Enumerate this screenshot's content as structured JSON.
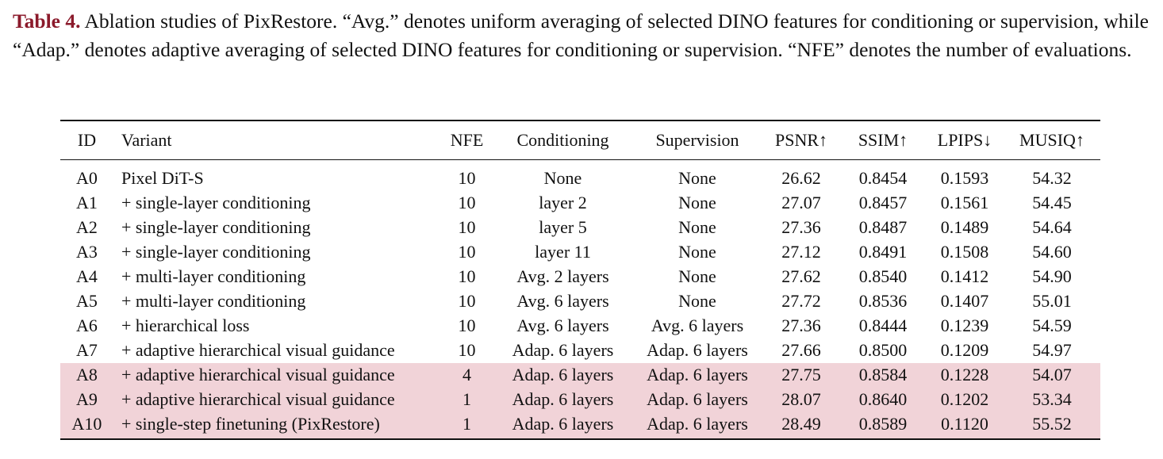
{
  "caption": {
    "label": "Table 4.",
    "text": "Ablation studies of PixRestore. “Avg.” denotes uniform averaging of selected DINO features for conditioning or supervision, while “Adap.” denotes adaptive averaging of selected DINO features for conditioning or supervision. “NFE” denotes the number of evaluations."
  },
  "table": {
    "columns": [
      "ID",
      "Variant",
      "NFE",
      "Conditioning",
      "Supervision",
      "PSNR↑",
      "SSIM↑",
      "LPIPS↓",
      "MUSIQ↑"
    ],
    "highlight_color": "#f1d3d8",
    "rows": [
      [
        "A0",
        "Pixel DiT-S",
        "10",
        "None",
        "None",
        "26.62",
        "0.8454",
        "0.1593",
        "54.32"
      ],
      [
        "A1",
        "+ single-layer conditioning",
        "10",
        "layer 2",
        "None",
        "27.07",
        "0.8457",
        "0.1561",
        "54.45"
      ],
      [
        "A2",
        "+ single-layer conditioning",
        "10",
        "layer 5",
        "None",
        "27.36",
        "0.8487",
        "0.1489",
        "54.64"
      ],
      [
        "A3",
        "+ single-layer conditioning",
        "10",
        "layer 11",
        "None",
        "27.12",
        "0.8491",
        "0.1508",
        "54.60"
      ],
      [
        "A4",
        "+ multi-layer conditioning",
        "10",
        "Avg. 2 layers",
        "None",
        "27.62",
        "0.8540",
        "0.1412",
        "54.90"
      ],
      [
        "A5",
        "+ multi-layer conditioning",
        "10",
        "Avg. 6 layers",
        "None",
        "27.72",
        "0.8536",
        "0.1407",
        "55.01"
      ],
      [
        "A6",
        "+ hierarchical loss",
        "10",
        "Avg. 6 layers",
        "Avg. 6 layers",
        "27.36",
        "0.8444",
        "0.1239",
        "54.59"
      ],
      [
        "A7",
        "+ adaptive hierarchical visual guidance",
        "10",
        "Adap. 6 layers",
        "Adap. 6 layers",
        "27.66",
        "0.8500",
        "0.1209",
        "54.97"
      ],
      [
        "A8",
        "+ adaptive hierarchical visual guidance",
        "4",
        "Adap. 6 layers",
        "Adap. 6 layers",
        "27.75",
        "0.8584",
        "0.1228",
        "54.07"
      ],
      [
        "A9",
        "+ adaptive hierarchical visual guidance",
        "1",
        "Adap. 6 layers",
        "Adap. 6 layers",
        "28.07",
        "0.8640",
        "0.1202",
        "53.34"
      ],
      [
        "A10",
        "+ single-step finetuning (PixRestore)",
        "1",
        "Adap. 6 layers",
        "Adap. 6 layers",
        "28.49",
        "0.8589",
        "0.1120",
        "55.52"
      ]
    ],
    "highlighted_rows": [
      "A8",
      "A9",
      "A10"
    ]
  }
}
